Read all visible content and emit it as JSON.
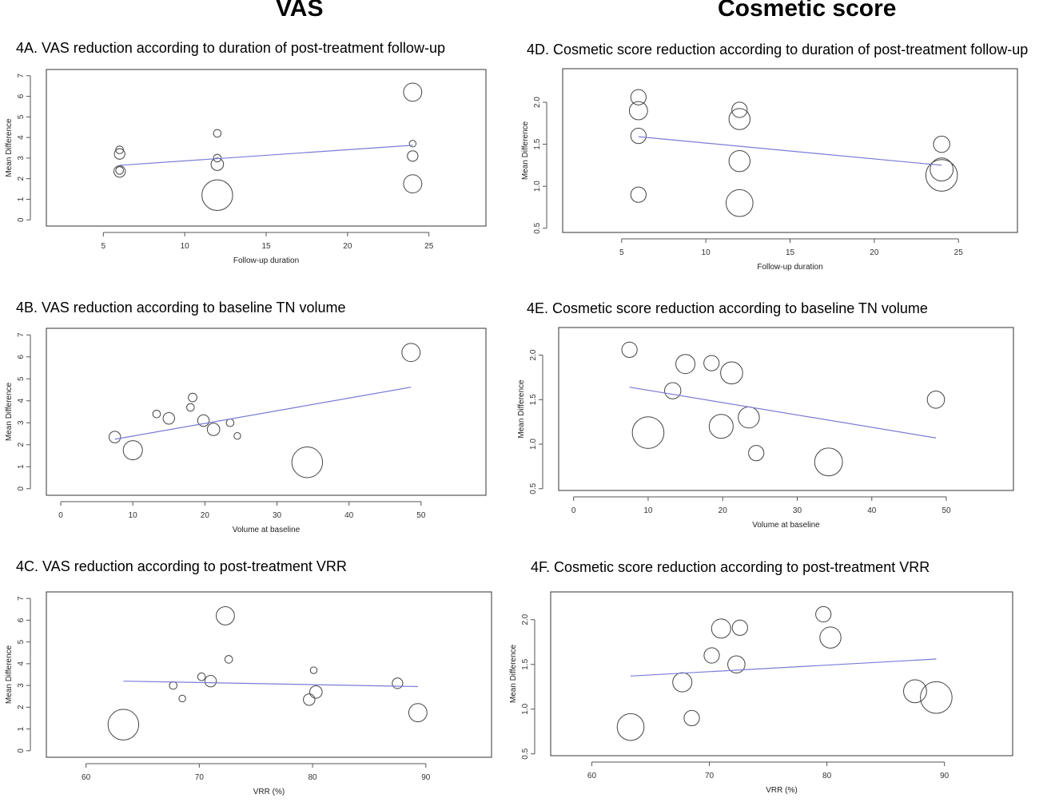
{
  "headers": {
    "vas": "VAS",
    "cosmetic": "Cosmetic score"
  },
  "chart_data": [
    {
      "id": "A",
      "type": "scatter",
      "title": "4A. VAS reduction according to duration of post-treatment follow-up",
      "xlabel": "Follow-up duration",
      "ylabel": "Mean Difference",
      "xticks": [
        5,
        10,
        15,
        20,
        25
      ],
      "yticks": [
        0,
        1,
        2,
        3,
        4,
        5,
        6,
        7
      ],
      "xlim": [
        1.5,
        28.5
      ],
      "ylim": [
        -0.3,
        7.3
      ],
      "points": [
        {
          "x": 6,
          "y": 3.4,
          "w": 0.8
        },
        {
          "x": 6,
          "y": 3.2,
          "w": 1.1
        },
        {
          "x": 6,
          "y": 2.4,
          "w": 0.8
        },
        {
          "x": 6,
          "y": 2.35,
          "w": 1.2
        },
        {
          "x": 12,
          "y": 4.2,
          "w": 0.8
        },
        {
          "x": 12,
          "y": 3.0,
          "w": 0.8
        },
        {
          "x": 12,
          "y": 2.7,
          "w": 1.3
        },
        {
          "x": 12,
          "y": 1.2,
          "w": 3.2
        },
        {
          "x": 24,
          "y": 6.2,
          "w": 1.9
        },
        {
          "x": 24,
          "y": 3.7,
          "w": 0.7
        },
        {
          "x": 24,
          "y": 3.1,
          "w": 1.1
        },
        {
          "x": 24,
          "y": 1.75,
          "w": 1.9
        }
      ],
      "line": {
        "x": [
          6,
          24
        ],
        "y": [
          2.65,
          3.62
        ]
      }
    },
    {
      "id": "D",
      "type": "scatter",
      "title": "4D. Cosmetic score reduction according to duration of post-treatment follow-up",
      "xlabel": "Follow-up duration",
      "ylabel": "Mean Difference",
      "xticks": [
        5,
        10,
        15,
        20,
        25
      ],
      "yticks": [
        0.5,
        1.0,
        1.5,
        2.0
      ],
      "xlim": [
        1.5,
        28.5
      ],
      "ylim": [
        0.45,
        2.4
      ],
      "points": [
        {
          "x": 6,
          "y": 2.06,
          "w": 1.6
        },
        {
          "x": 6,
          "y": 1.9,
          "w": 1.9
        },
        {
          "x": 6,
          "y": 1.6,
          "w": 1.6
        },
        {
          "x": 6,
          "y": 0.9,
          "w": 1.6
        },
        {
          "x": 12,
          "y": 1.91,
          "w": 1.6
        },
        {
          "x": 12,
          "y": 1.8,
          "w": 2.2
        },
        {
          "x": 12,
          "y": 1.3,
          "w": 2.2
        },
        {
          "x": 12,
          "y": 0.8,
          "w": 2.8
        },
        {
          "x": 24,
          "y": 1.5,
          "w": 1.7
        },
        {
          "x": 24,
          "y": 1.2,
          "w": 2.4
        },
        {
          "x": 24,
          "y": 1.13,
          "w": 3.3
        }
      ],
      "line": {
        "x": [
          6,
          24
        ],
        "y": [
          1.59,
          1.25
        ]
      }
    },
    {
      "id": "B",
      "type": "scatter",
      "title": "4B. VAS reduction according to baseline TN volume",
      "xlabel": "Volume at baseline",
      "ylabel": "Mean Difference",
      "xticks": [
        0,
        10,
        20,
        30,
        40,
        50
      ],
      "yticks": [
        0,
        1,
        2,
        3,
        4,
        5,
        6,
        7
      ],
      "xlim": [
        -2,
        59
      ],
      "ylim": [
        -0.3,
        7.3
      ],
      "points": [
        {
          "x": 13.3,
          "y": 3.4,
          "w": 0.8
        },
        {
          "x": 15.0,
          "y": 3.2,
          "w": 1.2
        },
        {
          "x": 18.0,
          "y": 3.7,
          "w": 0.8
        },
        {
          "x": 18.3,
          "y": 4.15,
          "w": 0.9
        },
        {
          "x": 7.5,
          "y": 2.35,
          "w": 1.2
        },
        {
          "x": 10.0,
          "y": 1.75,
          "w": 2.0
        },
        {
          "x": 19.8,
          "y": 3.1,
          "w": 1.2
        },
        {
          "x": 21.2,
          "y": 2.7,
          "w": 1.3
        },
        {
          "x": 23.5,
          "y": 3.0,
          "w": 0.8
        },
        {
          "x": 24.5,
          "y": 2.4,
          "w": 0.7
        },
        {
          "x": 34.2,
          "y": 1.2,
          "w": 3.2
        },
        {
          "x": 48.6,
          "y": 6.2,
          "w": 1.9
        }
      ],
      "line": {
        "x": [
          7.5,
          48.6
        ],
        "y": [
          2.25,
          4.62
        ]
      }
    },
    {
      "id": "E",
      "type": "scatter",
      "title": "4E. Cosmetic score reduction according to baseline TN volume",
      "xlabel": "Volume at baseline",
      "ylabel": "Mean Difference",
      "xticks": [
        0,
        10,
        20,
        30,
        40,
        50
      ],
      "yticks": [
        0.5,
        1.0,
        1.5,
        2.0
      ],
      "xlim": [
        -2,
        59
      ],
      "ylim": [
        0.48,
        2.31
      ],
      "points": [
        {
          "x": 7.5,
          "y": 2.06,
          "w": 1.6
        },
        {
          "x": 15.0,
          "y": 1.9,
          "w": 2.0
        },
        {
          "x": 18.5,
          "y": 1.91,
          "w": 1.6
        },
        {
          "x": 21.2,
          "y": 1.8,
          "w": 2.3
        },
        {
          "x": 13.3,
          "y": 1.6,
          "w": 1.7
        },
        {
          "x": 10.0,
          "y": 1.13,
          "w": 3.3
        },
        {
          "x": 19.8,
          "y": 1.2,
          "w": 2.5
        },
        {
          "x": 23.5,
          "y": 1.3,
          "w": 2.2
        },
        {
          "x": 24.5,
          "y": 0.9,
          "w": 1.6
        },
        {
          "x": 34.2,
          "y": 0.8,
          "w": 2.9
        },
        {
          "x": 48.6,
          "y": 1.5,
          "w": 1.8
        }
      ],
      "line": {
        "x": [
          7.5,
          48.6
        ],
        "y": [
          1.64,
          1.07
        ]
      }
    },
    {
      "id": "C",
      "type": "scatter",
      "title": "4C. VAS reduction according to post-treatment VRR",
      "xlabel": "VRR (%)",
      "ylabel": "Mean Difference",
      "xticks": [
        60,
        70,
        80,
        90
      ],
      "yticks": [
        0,
        1,
        2,
        3,
        4,
        5,
        6,
        7
      ],
      "xlim": [
        56.5,
        95.8
      ],
      "ylim": [
        -0.3,
        7.3
      ],
      "points": [
        {
          "x": 63.3,
          "y": 1.2,
          "w": 3.2
        },
        {
          "x": 67.7,
          "y": 3.0,
          "w": 0.8
        },
        {
          "x": 68.5,
          "y": 2.4,
          "w": 0.7
        },
        {
          "x": 70.2,
          "y": 3.4,
          "w": 0.8
        },
        {
          "x": 71.0,
          "y": 3.2,
          "w": 1.2
        },
        {
          "x": 72.3,
          "y": 6.2,
          "w": 1.9
        },
        {
          "x": 72.6,
          "y": 4.2,
          "w": 0.8
        },
        {
          "x": 79.7,
          "y": 2.35,
          "w": 1.2
        },
        {
          "x": 80.1,
          "y": 3.7,
          "w": 0.7
        },
        {
          "x": 80.3,
          "y": 2.7,
          "w": 1.3
        },
        {
          "x": 87.5,
          "y": 3.1,
          "w": 1.1
        },
        {
          "x": 89.3,
          "y": 1.75,
          "w": 1.9
        }
      ],
      "line": {
        "x": [
          63.3,
          89.3
        ],
        "y": [
          3.2,
          2.95
        ]
      }
    },
    {
      "id": "F",
      "type": "scatter",
      "title": "4F. Cosmetic score reduction according to post-treatment VRR",
      "xlabel": "VRR (%)",
      "ylabel": "Mean Difference",
      "xticks": [
        60,
        70,
        80,
        90
      ],
      "yticks": [
        0.5,
        1.0,
        1.5,
        2.0
      ],
      "xlim": [
        56.5,
        95.8
      ],
      "ylim": [
        0.48,
        2.31
      ],
      "points": [
        {
          "x": 63.3,
          "y": 0.8,
          "w": 2.8
        },
        {
          "x": 67.7,
          "y": 1.3,
          "w": 2.0
        },
        {
          "x": 68.5,
          "y": 0.9,
          "w": 1.6
        },
        {
          "x": 70.2,
          "y": 1.6,
          "w": 1.6
        },
        {
          "x": 71.0,
          "y": 1.9,
          "w": 2.0
        },
        {
          "x": 72.3,
          "y": 1.5,
          "w": 1.8
        },
        {
          "x": 72.6,
          "y": 1.91,
          "w": 1.6
        },
        {
          "x": 79.7,
          "y": 2.06,
          "w": 1.6
        },
        {
          "x": 80.3,
          "y": 1.8,
          "w": 2.2
        },
        {
          "x": 87.5,
          "y": 1.2,
          "w": 2.4
        },
        {
          "x": 89.3,
          "y": 1.13,
          "w": 3.3
        }
      ],
      "line": {
        "x": [
          63.3,
          89.3
        ],
        "y": [
          1.37,
          1.56
        ]
      }
    }
  ]
}
